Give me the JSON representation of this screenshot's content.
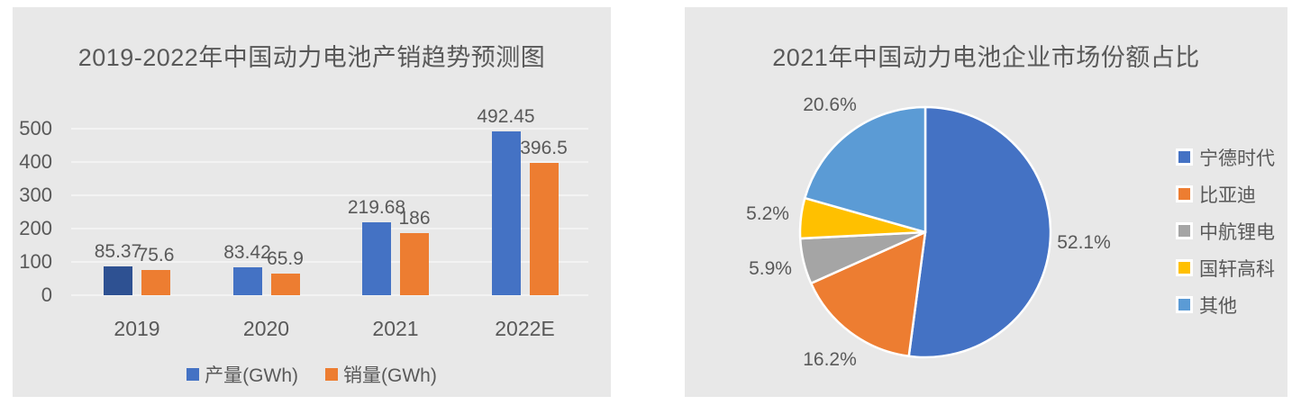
{
  "page_background": "#ffffff",
  "panel_background": "#e8e8e8",
  "text_color": "#595959",
  "chart_data": [
    {
      "type": "bar",
      "title": "2019-2022年中国动力电池产销趋势预测图",
      "categories": [
        "2019",
        "2020",
        "2021",
        "2022E"
      ],
      "series": [
        {
          "name": "产量(GWh)",
          "color": "#4472C4",
          "point_colors": [
            "#2E5192",
            "#4472C4",
            "#4472C4",
            "#4472C4"
          ],
          "values": [
            85.37,
            83.42,
            219.68,
            492.45
          ],
          "data_labels": [
            "85.37",
            "83.42",
            "219.68",
            "492.45"
          ]
        },
        {
          "name": "销量(GWh)",
          "color": "#ED7D31",
          "point_colors": [
            "#ED7D31",
            "#ED7D31",
            "#ED7D31",
            "#ED7D31"
          ],
          "values": [
            75.6,
            65.9,
            186,
            396.5
          ],
          "data_labels": [
            "75.6",
            "65.9",
            "186",
            "396.5"
          ]
        }
      ],
      "ylim": [
        0,
        500
      ],
      "ytick_step": 100,
      "ytick_labels": [
        "0",
        "100",
        "200",
        "300",
        "400",
        "500"
      ],
      "grid": true,
      "legend_position": "bottom",
      "data_labels_on": true
    },
    {
      "type": "pie",
      "title": "2021年中国动力电池企业市场份额占比",
      "slices": [
        {
          "label": "宁德时代",
          "value": 52.1,
          "display": "52.1%",
          "color": "#4472C4"
        },
        {
          "label": "比亚迪",
          "value": 16.2,
          "display": "16.2%",
          "color": "#ED7D31"
        },
        {
          "label": "中航锂电",
          "value": 5.9,
          "display": "5.9%",
          "color": "#A5A5A5"
        },
        {
          "label": "国轩高科",
          "value": 5.2,
          "display": "5.2%",
          "color": "#FFC000"
        },
        {
          "label": "其他",
          "value": 20.6,
          "display": "20.6%",
          "color": "#5B9BD5"
        }
      ],
      "start_angle_deg": 0,
      "direction": "clockwise",
      "slice_border_color": "#ffffff",
      "legend_position": "right"
    }
  ]
}
